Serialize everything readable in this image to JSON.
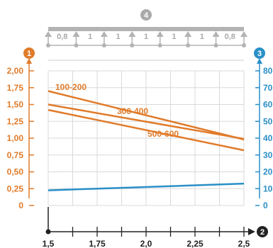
{
  "colors": {
    "orange": "#e07b2a",
    "blue": "#2a8fc7",
    "grid": "#d9d9d9",
    "support_grey": "#b3b3b3",
    "axis_black": "#222222"
  },
  "badges": {
    "top": "4",
    "left_axis": "1",
    "right_axis": "3",
    "x_axis": "2"
  },
  "span_diagram": {
    "labels": [
      "0,8",
      "1",
      "1",
      "1",
      "1",
      "1",
      "0,8"
    ]
  },
  "chart_data": {
    "type": "line",
    "x_ticks": [
      "1,5",
      "1,75",
      "2,0",
      "2,25",
      "2,5"
    ],
    "xlim": [
      1.5,
      2.5
    ],
    "y_left_ticks": [
      "0",
      "0,25",
      "0,50",
      "0,75",
      "1,00",
      "1,25",
      "1,50",
      "1,75",
      "2,00"
    ],
    "y_left_lim": [
      0,
      2.0
    ],
    "y_right_ticks": [
      "0",
      "10",
      "20",
      "30",
      "40",
      "50",
      "60",
      "70",
      "80"
    ],
    "y_right_lim": [
      0,
      80
    ],
    "grid": true,
    "series": [
      {
        "name": "100-200",
        "axis": "left",
        "color": "#e07b2a",
        "x": [
          1.5,
          2.5
        ],
        "y": [
          1.7,
          0.98
        ]
      },
      {
        "name": "300-400",
        "axis": "left",
        "color": "#e07b2a",
        "x": [
          1.5,
          2.5
        ],
        "y": [
          1.5,
          0.99
        ]
      },
      {
        "name": "500-600",
        "axis": "left",
        "color": "#e07b2a",
        "x": [
          1.5,
          2.5
        ],
        "y": [
          1.42,
          0.82
        ]
      },
      {
        "axis": "right",
        "color": "#2a8fc7",
        "x": [
          1.5,
          2.5
        ],
        "y": [
          9,
          13
        ]
      }
    ]
  }
}
